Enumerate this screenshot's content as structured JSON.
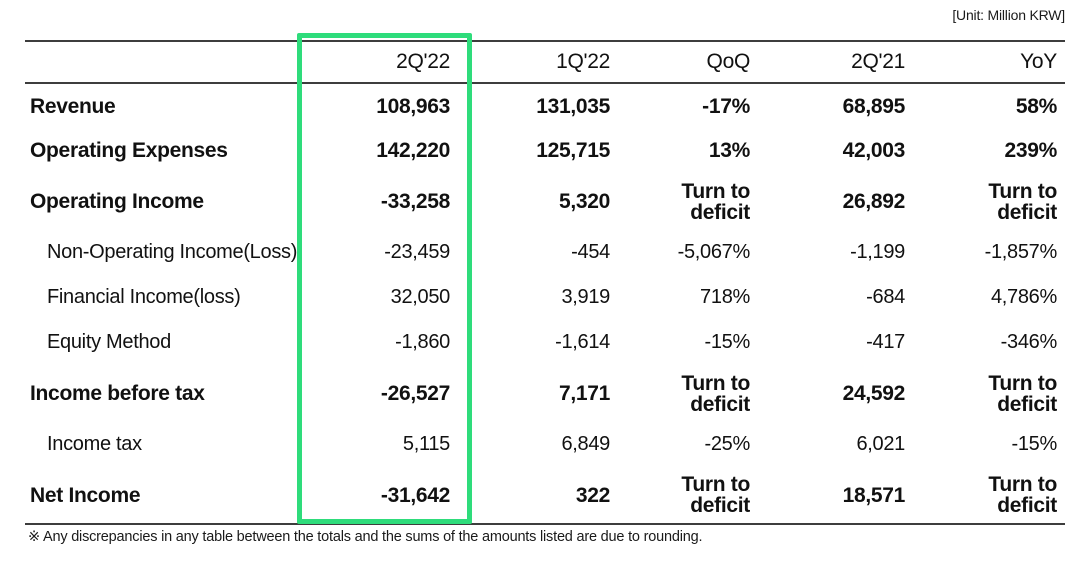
{
  "unit_label": "[Unit: Million KRW]",
  "footnote": "※  Any discrepancies in any table between the totals and the sums of the amounts listed are due to rounding.",
  "highlight": {
    "column": "2Q'22",
    "color": "#2EDC7B"
  },
  "table": {
    "columns": [
      "",
      "2Q'22",
      "1Q'22",
      "QoQ",
      "2Q'21",
      "YoY"
    ],
    "rows": [
      {
        "label": "Revenue",
        "values": [
          "108,963",
          "131,035",
          "-17%",
          "68,895",
          "58%"
        ]
      },
      {
        "label": "Operating Expenses",
        "values": [
          "142,220",
          "125,715",
          "13%",
          "42,003",
          "239%"
        ]
      },
      {
        "label": "Operating Income",
        "values": [
          "-33,258",
          "5,320",
          "Turn to\ndeficit",
          "26,892",
          "Turn to\ndeficit"
        ]
      },
      {
        "label": "Non-Operating Income(Loss)",
        "values": [
          "-23,459",
          "-454",
          "-5,067%",
          "-1,199",
          "-1,857%"
        ]
      },
      {
        "label": "Financial Income(loss)",
        "values": [
          "32,050",
          "3,919",
          "718%",
          "-684",
          "4,786%"
        ]
      },
      {
        "label": "Equity Method",
        "values": [
          "-1,860",
          "-1,614",
          "-15%",
          "-417",
          "-346%"
        ]
      },
      {
        "label": "Income before tax",
        "values": [
          "-26,527",
          "7,171",
          "Turn to\ndeficit",
          "24,592",
          "Turn to\ndeficit"
        ]
      },
      {
        "label": "Income tax",
        "values": [
          "5,115",
          "6,849",
          "-25%",
          "6,021",
          "-15%"
        ]
      },
      {
        "label": "Net Income",
        "values": [
          "-31,642",
          "322",
          "Turn to\ndeficit",
          "18,571",
          "Turn to\ndeficit"
        ]
      }
    ]
  }
}
